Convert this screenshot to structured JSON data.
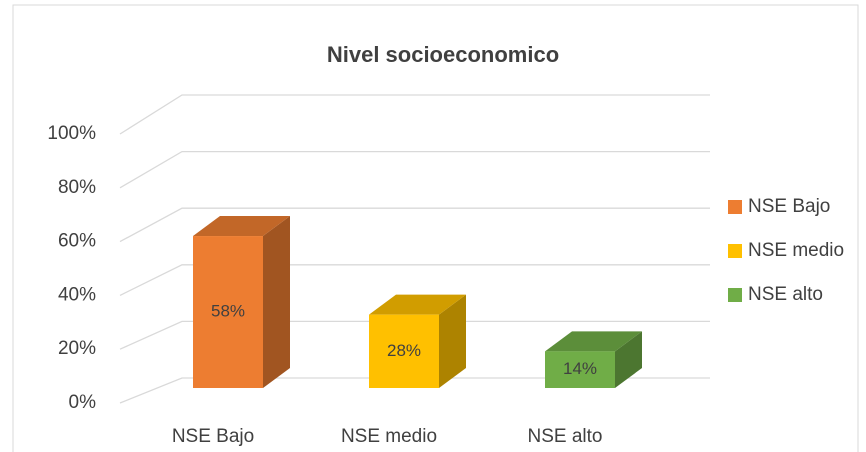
{
  "chart_data": {
    "type": "bar3d",
    "title": "Nivel socioeconomico",
    "categories": [
      "NSE Bajo",
      "NSE medio",
      "NSE alto"
    ],
    "values": [
      58,
      28,
      14
    ],
    "value_labels": [
      "58%",
      "28%",
      "14%"
    ],
    "colors": [
      "#ED7D31",
      "#FFC000",
      "#70AD47"
    ],
    "ylim": [
      0,
      100
    ],
    "yticks": [
      {
        "value": 0,
        "label": "0%"
      },
      {
        "value": 20,
        "label": "20%"
      },
      {
        "value": 40,
        "label": "40%"
      },
      {
        "value": 60,
        "label": "60%"
      },
      {
        "value": 80,
        "label": "80%"
      },
      {
        "value": 100,
        "label": "100%"
      }
    ],
    "grid": true,
    "legend": "right"
  }
}
